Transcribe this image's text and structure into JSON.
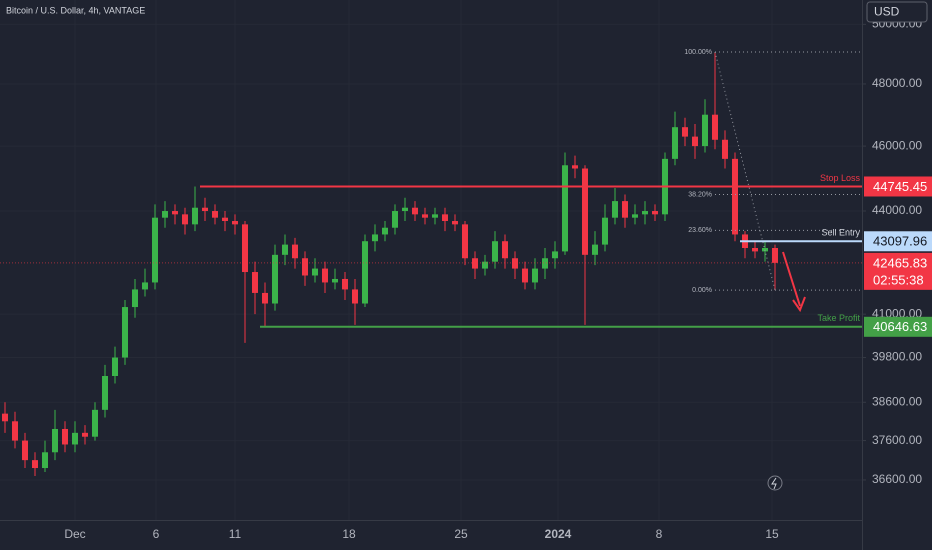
{
  "chart_data": {
    "type": "candlestick",
    "title": "Bitcoin / U.S. Dollar, 4h, VANTAGE",
    "currency": "USD",
    "countdown": "02:55:38",
    "log_scale": true,
    "grid": true,
    "up_color": "#3bb44a",
    "down_color": "#f23645",
    "xlim": [
      0,
      86.2
    ],
    "ylim": [
      35610,
      50840
    ],
    "xticks": [
      {
        "value": 7.5,
        "label": "Dec"
      },
      {
        "value": 15.6,
        "label": "6"
      },
      {
        "value": 23.5,
        "label": "11"
      },
      {
        "value": 34.9,
        "label": "18"
      },
      {
        "value": 46.1,
        "label": "25"
      },
      {
        "value": 55.8,
        "label": "2024"
      },
      {
        "value": 65.9,
        "label": "8"
      },
      {
        "value": 77.2,
        "label": "15"
      }
    ],
    "yticks": [
      {
        "value": 50000,
        "label": "50000.00"
      },
      {
        "value": 48000,
        "label": "48000.00"
      },
      {
        "value": 46000,
        "label": "46000.00"
      },
      {
        "value": 44000,
        "label": "44000.00"
      },
      {
        "value": 41000,
        "label": "41000.00"
      },
      {
        "value": 39800,
        "label": "39800.00"
      },
      {
        "value": 38600,
        "label": "38600.00"
      },
      {
        "value": 37600,
        "label": "37600.00"
      },
      {
        "value": 36600,
        "label": "36600.00"
      }
    ],
    "open": [
      38300,
      38100,
      37600,
      37100,
      36900,
      37300,
      37900,
      37500,
      37800,
      37700,
      38400,
      39300,
      39800,
      41200,
      41700,
      41900,
      43800,
      44000,
      43900,
      43600,
      44100,
      44000,
      43800,
      43700,
      43600,
      42200,
      41600,
      41300,
      42700,
      43000,
      42600,
      42100,
      42300,
      41900,
      42000,
      41700,
      41300,
      43100,
      43300,
      43500,
      44000,
      44100,
      43900,
      43800,
      43900,
      43700,
      43600,
      42600,
      42300,
      42500,
      43100,
      42600,
      42300,
      41900,
      42300,
      42600,
      42800,
      45400,
      45300,
      42700,
      43000,
      43800,
      44300,
      43800,
      43900,
      44000,
      43900,
      45600,
      46600,
      46300,
      46000,
      47000,
      46200,
      45600,
      43300,
      42900,
      42800,
      42900
    ],
    "high": [
      38600,
      38350,
      37800,
      37300,
      37600,
      38400,
      38100,
      38100,
      38000,
      38600,
      39600,
      40100,
      41400,
      42000,
      42300,
      44200,
      44300,
      44200,
      44100,
      44745.45,
      44400,
      44200,
      44000,
      43900,
      43700,
      42500,
      41900,
      43000,
      43300,
      43200,
      42800,
      42600,
      42500,
      42300,
      42200,
      42000,
      43300,
      43600,
      43700,
      44200,
      44400,
      44300,
      44100,
      44100,
      44100,
      43900,
      43700,
      42800,
      42700,
      43400,
      43300,
      42800,
      42500,
      42600,
      42900,
      43100,
      45800,
      45700,
      45400,
      43400,
      44200,
      44700,
      44500,
      44200,
      44300,
      44200,
      45800,
      47100,
      46900,
      46700,
      47500,
      49060,
      46500,
      45800,
      43400,
      43100,
      43100,
      43000
    ],
    "low": [
      37800,
      37400,
      36900,
      36700,
      36800,
      37100,
      37300,
      37300,
      37500,
      37600,
      38200,
      39100,
      39600,
      40900,
      41500,
      41700,
      43500,
      43600,
      43300,
      43400,
      43700,
      43600,
      43400,
      43300,
      40200,
      41000,
      40646.63,
      41100,
      42400,
      42300,
      41800,
      41900,
      41600,
      41700,
      41400,
      40700,
      41200,
      42800,
      43100,
      43300,
      43700,
      43700,
      43600,
      43600,
      43400,
      43400,
      42400,
      42000,
      42100,
      42300,
      42300,
      42000,
      41700,
      41700,
      42000,
      42300,
      42700,
      45000,
      40700,
      42400,
      42800,
      43600,
      43500,
      43600,
      43600,
      43700,
      43700,
      45400,
      46000,
      45600,
      45800,
      45900,
      45300,
      43100,
      42600,
      42600,
      42500,
      41680
    ],
    "close": [
      38100,
      37600,
      37100,
      36900,
      37300,
      37900,
      37500,
      37800,
      37700,
      38400,
      39300,
      39800,
      41200,
      41700,
      41900,
      43800,
      44000,
      43900,
      43600,
      44100,
      44000,
      43800,
      43700,
      43600,
      42200,
      41600,
      41300,
      42700,
      43000,
      42600,
      42100,
      42300,
      41900,
      42000,
      41700,
      41300,
      43100,
      43300,
      43500,
      44000,
      44100,
      43900,
      43800,
      43900,
      43700,
      43600,
      42600,
      42300,
      42500,
      43100,
      42600,
      42300,
      41900,
      42300,
      42600,
      42800,
      45400,
      45300,
      42700,
      43000,
      43800,
      44300,
      43800,
      43900,
      44000,
      43900,
      45600,
      46600,
      46300,
      46000,
      47000,
      46200,
      45600,
      43300,
      42900,
      42800,
      42900,
      42465.83
    ],
    "levels": [
      {
        "label": "Stop Loss",
        "value": 44745.45,
        "color": "#f23645",
        "text_color": "#ffffff"
      },
      {
        "label": "Sell Entry",
        "value": 43097.96,
        "color": "#bbd9fb",
        "text_color": "#131722"
      },
      {
        "label": "Take Profit",
        "value": 40646.63,
        "color": "#43a047",
        "text_color": "#ffffff"
      }
    ],
    "fib_levels": [
      {
        "label": "100.00%",
        "value": 49060
      },
      {
        "label": "38.20%",
        "value": 44500
      },
      {
        "label": "23.60%",
        "value": 43420
      },
      {
        "label": "0.00%",
        "value": 41680
      }
    ]
  }
}
